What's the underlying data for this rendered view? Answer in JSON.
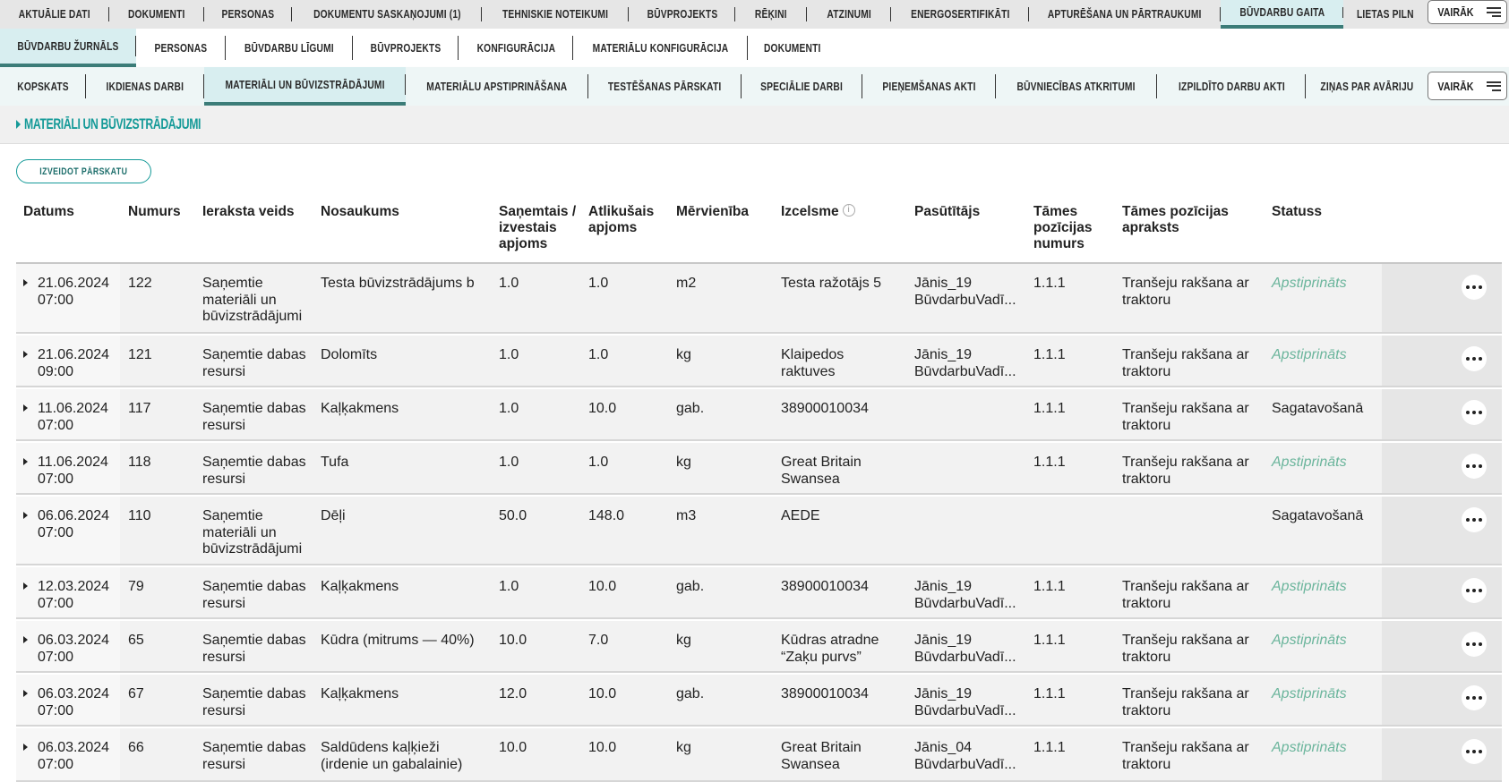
{
  "nav_primary": {
    "tabs": [
      "AKTUĀLIE DATI",
      "DOKUMENTI",
      "PERSONAS",
      "DOKUMENTU SASKAŅOJUMI (1)",
      "TEHNISKIE NOTEIKUMI",
      "BŪVPROJEKTS",
      "RĒĶINI",
      "ATZINUMI",
      "ENERGOSERTIFIKĀTI",
      "APTURĒŠANA UN PĀRTRAUKUMI",
      "BŪVDARBU GAITA",
      "LIETAS PILN"
    ],
    "active": "BŪVDARBU GAITA",
    "more_label": "VAIRĀK"
  },
  "nav_secondary": {
    "tabs": [
      "BŪVDARBU ŽURNĀLS",
      "PERSONAS",
      "BŪVDARBU LĪGUMI",
      "BŪVPROJEKTS",
      "KONFIGURĀCIJA",
      "MATERIĀLU KONFIGURĀCIJA",
      "DOKUMENTI"
    ],
    "active": "BŪVDARBU ŽURNĀLS"
  },
  "nav_tertiary": {
    "tabs": [
      "KOPSKATS",
      "IKDIENAS DARBI",
      "MATERIĀLI UN BŪVIZSTRĀDĀJUMI",
      "MATERIĀLU APSTIPRINĀŠANA",
      "TESTĒŠANAS PĀRSKATI",
      "SPECIĀLIE DARBI",
      "PIEŅEMŠANAS AKTI",
      "BŪVNIECĪBAS ATKRITUMI",
      "IZPILDĪTO DARBU AKTI",
      "ZIŅAS PAR AVĀRIJU"
    ],
    "active": "MATERIĀLI UN BŪVIZSTRĀDĀJUMI",
    "more_label": "VAIRĀK"
  },
  "section": {
    "title": "MATERIĀLI UN BŪVIZSTRĀDĀJUMI"
  },
  "report_button": "IZVEIDOT PĀRSKATU",
  "colors": {
    "accent": "#159a98",
    "active_tab_border": "#3b7c78",
    "status_approved": "#6bb59c"
  },
  "table": {
    "columns": [
      "Datums",
      "Numurs",
      "Ieraksta veids",
      "Nosaukums",
      "Saņemtais / izvestais apjoms",
      "Atlikušais apjoms",
      "Mērvienība",
      "Izcelsme",
      "Pasūtītājs",
      "Tāmes pozīcijas numurs",
      "Tāmes pozīcijas apraksts",
      "Statuss"
    ],
    "rows": [
      {
        "date": "21.06.2024",
        "time": "07:00",
        "number": "122",
        "type": "Saņemtie materiāli un būvizstrādājumi",
        "name": "Testa būvizstrādājums b",
        "qty": "1.0",
        "remaining": "1.0",
        "unit": "m2",
        "origin": "Testa ražotājs 5",
        "customer": "Jānis_19 BūvdarbuVadī...",
        "pos_no": "1.1.1",
        "pos_desc": "Tranšeju rakšana ar traktoru",
        "status": "Apstiprināts"
      },
      {
        "date": "21.06.2024",
        "time": "09:00",
        "number": "121",
        "type": "Saņemtie dabas resursi",
        "name": "Dolomīts",
        "qty": "1.0",
        "remaining": "1.0",
        "unit": "kg",
        "origin": "Klaipedos raktuves",
        "customer": "Jānis_19 BūvdarbuVadī...",
        "pos_no": "1.1.1",
        "pos_desc": "Tranšeju rakšana ar traktoru",
        "status": "Apstiprināts"
      },
      {
        "date": "11.06.2024",
        "time": "07:00",
        "number": "117",
        "type": "Saņemtie dabas resursi",
        "name": "Kaļķakmens",
        "qty": "1.0",
        "remaining": "10.0",
        "unit": "gab.",
        "origin": "38900010034",
        "customer": "",
        "pos_no": "1.1.1",
        "pos_desc": "Tranšeju rakšana ar traktoru",
        "status": "Sagatavošanā"
      },
      {
        "date": "11.06.2024",
        "time": "07:00",
        "number": "118",
        "type": "Saņemtie dabas resursi",
        "name": "Tufa",
        "qty": "1.0",
        "remaining": "1.0",
        "unit": "kg",
        "origin": "Great Britain Swansea",
        "customer": "",
        "pos_no": "1.1.1",
        "pos_desc": "Tranšeju rakšana ar traktoru",
        "status": "Apstiprināts"
      },
      {
        "date": "06.06.2024",
        "time": "07:00",
        "number": "110",
        "type": "Saņemtie materiāli un būvizstrādājumi",
        "name": "Dēļi",
        "qty": "50.0",
        "remaining": "148.0",
        "unit": "m3",
        "origin": "AEDE",
        "customer": "",
        "pos_no": "",
        "pos_desc": "",
        "status": "Sagatavošanā"
      },
      {
        "date": "12.03.2024",
        "time": "07:00",
        "number": "79",
        "type": "Saņemtie dabas resursi",
        "name": "Kaļķakmens",
        "qty": "1.0",
        "remaining": "10.0",
        "unit": "gab.",
        "origin": "38900010034",
        "customer": "Jānis_19 BūvdarbuVadī...",
        "pos_no": "1.1.1",
        "pos_desc": "Tranšeju rakšana ar traktoru",
        "status": "Apstiprināts"
      },
      {
        "date": "06.03.2024",
        "time": "07:00",
        "number": "65",
        "type": "Saņemtie dabas resursi",
        "name": "Kūdra (mitrums — 40%)",
        "qty": "10.0",
        "remaining": "7.0",
        "unit": "kg",
        "origin": "Kūdras atradne “Zaķu purvs”",
        "customer": "Jānis_19 BūvdarbuVadī...",
        "pos_no": "1.1.1",
        "pos_desc": "Tranšeju rakšana ar traktoru",
        "status": "Apstiprināts"
      },
      {
        "date": "06.03.2024",
        "time": "07:00",
        "number": "67",
        "type": "Saņemtie dabas resursi",
        "name": "Kaļķakmens",
        "qty": "12.0",
        "remaining": "10.0",
        "unit": "gab.",
        "origin": "38900010034",
        "customer": "Jānis_19 BūvdarbuVadī...",
        "pos_no": "1.1.1",
        "pos_desc": "Tranšeju rakšana ar traktoru",
        "status": "Apstiprināts"
      },
      {
        "date": "06.03.2024",
        "time": "07:00",
        "number": "66",
        "type": "Saņemtie dabas resursi",
        "name": "Saldūdens kaļķieži (irdenie un gabalainie)",
        "qty": "10.0",
        "remaining": "10.0",
        "unit": "kg",
        "origin": "Great Britain Swansea",
        "customer": "Jānis_04 BūvdarbuVadī...",
        "pos_no": "1.1.1",
        "pos_desc": "Tranšeju rakšana ar traktoru",
        "status": "Apstiprināts"
      }
    ]
  }
}
